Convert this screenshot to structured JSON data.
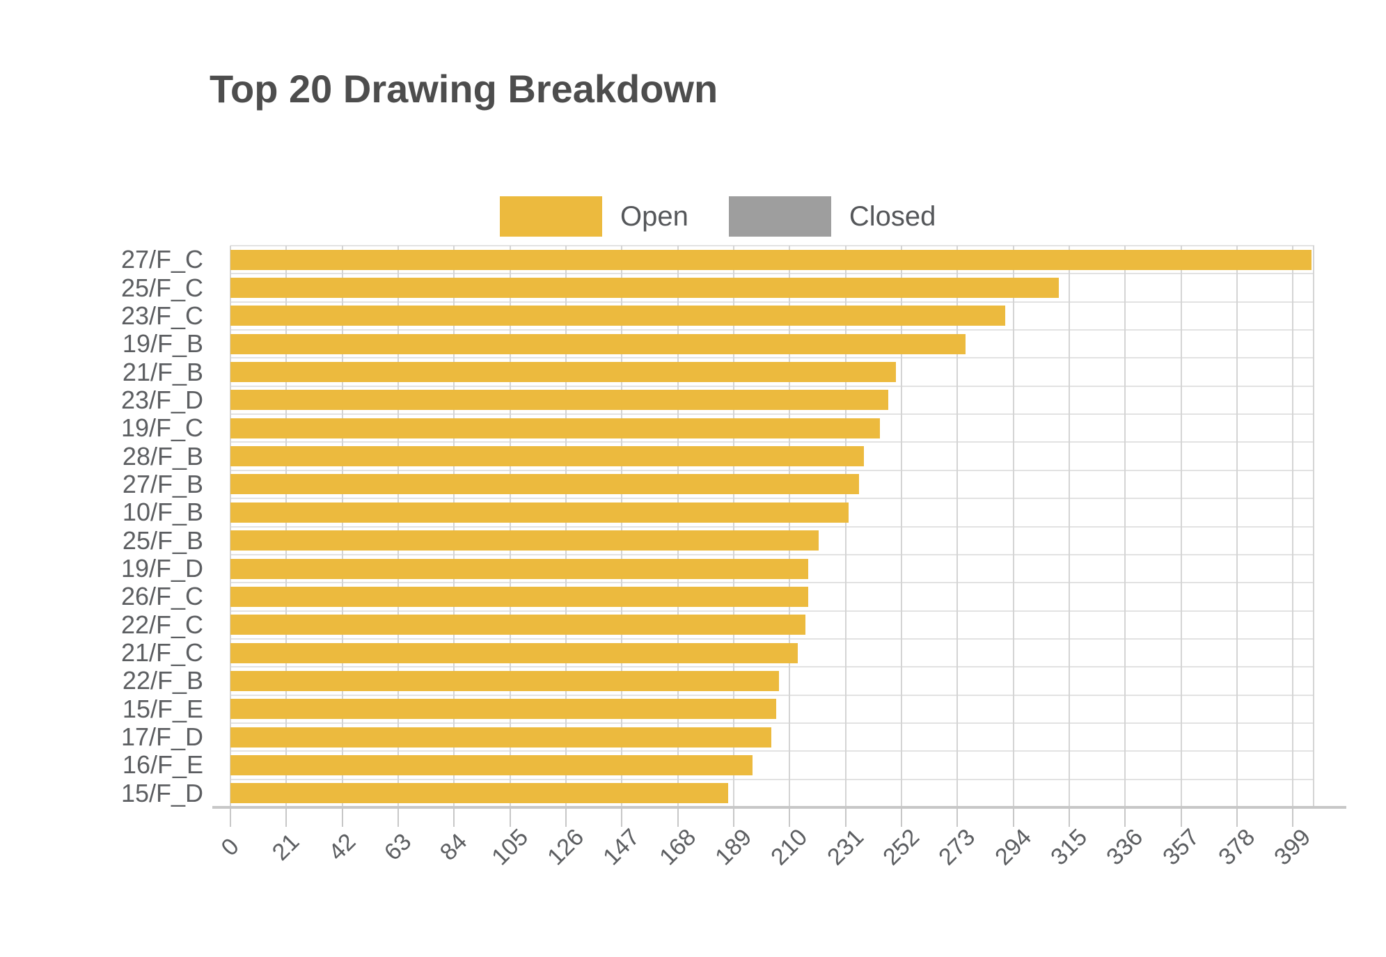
{
  "title": "Top 20 Drawing Breakdown",
  "legend": {
    "items": [
      {
        "label": "Open",
        "color": "#ecba3e"
      },
      {
        "label": "Closed",
        "color": "#9e9e9e"
      }
    ]
  },
  "chart_data": {
    "type": "bar",
    "orientation": "horizontal",
    "title": "Top 20 Drawing Breakdown",
    "xlabel": "",
    "ylabel": "",
    "grid": true,
    "legend_position": "top-center",
    "xlim": [
      0,
      407
    ],
    "x_ticks": [
      0,
      21,
      42,
      63,
      84,
      105,
      126,
      147,
      168,
      189,
      210,
      231,
      252,
      273,
      294,
      315,
      336,
      357,
      378,
      399
    ],
    "categories": [
      "27/F_C",
      "25/F_C",
      "23/F_C",
      "19/F_B",
      "21/F_B",
      "23/F_D",
      "19/F_C",
      "28/F_B",
      "27/F_B",
      "10/F_B",
      "25/F_B",
      "19/F_D",
      "26/F_C",
      "22/F_C",
      "21/F_C",
      "22/F_B",
      "15/F_E",
      "17/F_D",
      "16/F_E",
      "15/F_D"
    ],
    "series": [
      {
        "name": "Open",
        "color": "#ecba3e",
        "values": [
          406,
          311,
          291,
          276,
          250,
          247,
          244,
          238,
          236,
          232,
          221,
          217,
          217,
          216,
          213,
          206,
          205,
          203,
          196,
          187
        ]
      },
      {
        "name": "Closed",
        "color": "#9e9e9e",
        "values": [
          0,
          0,
          0,
          0,
          0,
          0,
          0,
          0,
          0,
          0,
          0,
          0,
          0,
          0,
          0,
          0,
          0,
          0,
          0,
          0
        ]
      }
    ]
  }
}
